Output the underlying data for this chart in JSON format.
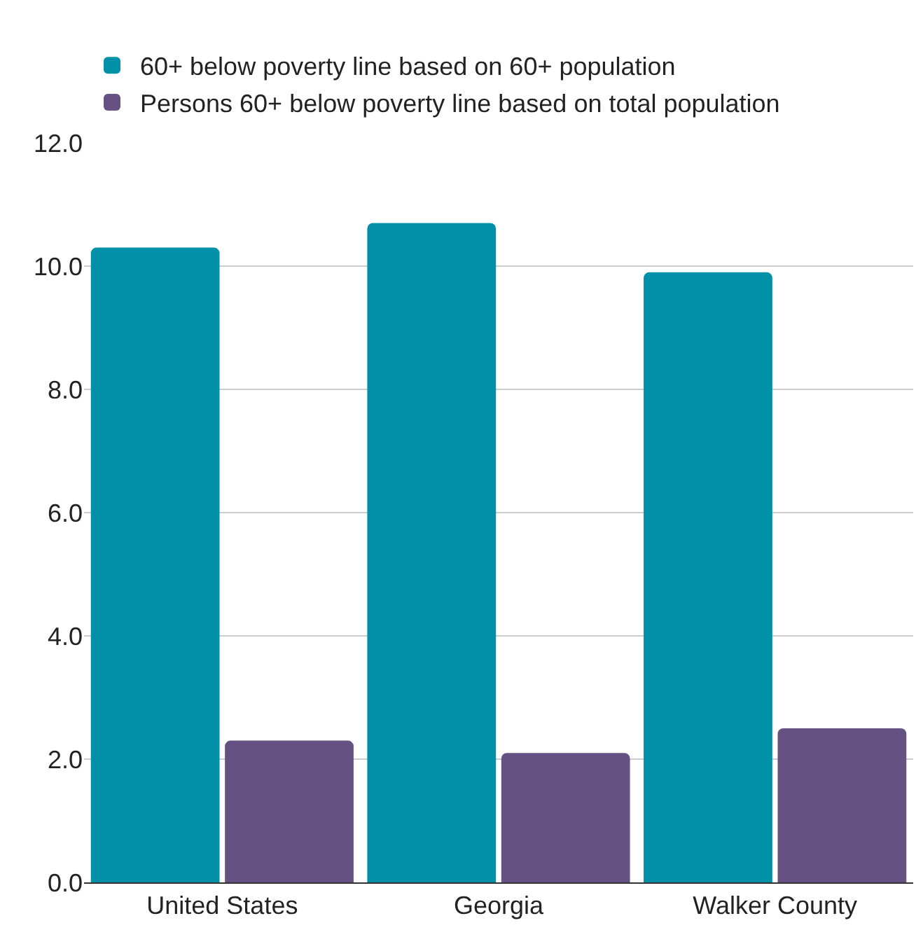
{
  "chart_data": {
    "type": "bar",
    "categories": [
      "United States",
      "Georgia",
      "Walker County"
    ],
    "series": [
      {
        "name": "60+ below poverty line based on 60+ population",
        "color": "#0090a8",
        "values": [
          10.3,
          10.7,
          9.9
        ]
      },
      {
        "name": "Persons 60+ below poverty line based on total population",
        "color": "#655282",
        "values": [
          2.3,
          2.1,
          2.5
        ]
      }
    ],
    "ylim": [
      0,
      12
    ],
    "yticks": [
      {
        "value": 0,
        "label": "0.0"
      },
      {
        "value": 2,
        "label": "2.0"
      },
      {
        "value": 4,
        "label": "4.0"
      },
      {
        "value": 6,
        "label": "6.0"
      },
      {
        "value": 8,
        "label": "8.0"
      },
      {
        "value": 10,
        "label": "10.0"
      },
      {
        "value": 12,
        "label": "12.0"
      }
    ],
    "grid": "y",
    "legend": "top left"
  }
}
